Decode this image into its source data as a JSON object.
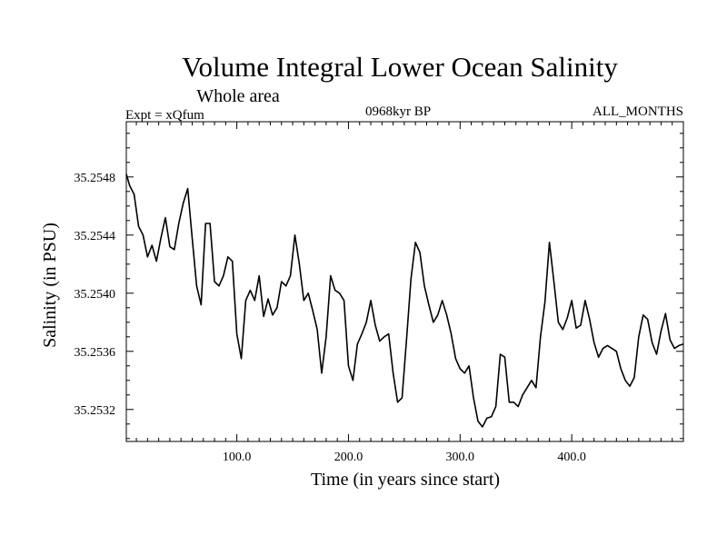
{
  "chart_data": {
    "type": "line",
    "title": "Volume Integral Lower Ocean Salinity",
    "subtitle": "Whole area",
    "annotation_left": "Expt = xQfum",
    "annotation_center": "0968kyr BP",
    "annotation_right": "ALL_MONTHS",
    "xlabel": "Time (in years since start)",
    "ylabel": "Salinity (in PSU)",
    "xlim": [
      1,
      500
    ],
    "ylim": [
      35.25298,
      35.25518
    ],
    "x_ticks": [
      100,
      200,
      300,
      400
    ],
    "x_tick_labels": [
      "100.0",
      "200.0",
      "300.0",
      "400.0"
    ],
    "y_ticks": [
      35.2532,
      35.2536,
      35.254,
      35.2544,
      35.2548
    ],
    "y_tick_labels": [
      "35.2532",
      "35.2536",
      "35.2540",
      "35.2544",
      "35.2548"
    ],
    "series": [
      {
        "name": "Salinity",
        "color": "#000000",
        "x": [
          1,
          4,
          8,
          12,
          16,
          20,
          24,
          28,
          32,
          36,
          40,
          44,
          48,
          52,
          56,
          60,
          64,
          68,
          72,
          76,
          80,
          84,
          88,
          92,
          96,
          100,
          104,
          108,
          112,
          116,
          120,
          124,
          128,
          132,
          136,
          140,
          144,
          148,
          152,
          156,
          160,
          164,
          168,
          172,
          176,
          180,
          184,
          188,
          192,
          196,
          200,
          204,
          208,
          212,
          216,
          220,
          224,
          228,
          232,
          236,
          240,
          244,
          248,
          252,
          256,
          260,
          264,
          268,
          272,
          276,
          280,
          284,
          288,
          292,
          296,
          300,
          304,
          308,
          312,
          316,
          320,
          324,
          328,
          332,
          336,
          340,
          344,
          348,
          352,
          356,
          360,
          364,
          368,
          372,
          376,
          380,
          384,
          388,
          392,
          396,
          400,
          404,
          408,
          412,
          416,
          420,
          424,
          428,
          432,
          436,
          440,
          444,
          448,
          452,
          456,
          460,
          464,
          468,
          472,
          476,
          480,
          484,
          488,
          492,
          496,
          500
        ],
        "values": [
          35.25482,
          35.25474,
          35.25468,
          35.25446,
          35.2544,
          35.25425,
          35.25433,
          35.25422,
          35.25438,
          35.25452,
          35.25432,
          35.2543,
          35.25448,
          35.25462,
          35.25472,
          35.25438,
          35.25405,
          35.25392,
          35.25448,
          35.25448,
          35.25408,
          35.25405,
          35.25412,
          35.25425,
          35.25422,
          35.25372,
          35.25355,
          35.25395,
          35.25402,
          35.25395,
          35.25412,
          35.25384,
          35.25396,
          35.25385,
          35.2539,
          35.25408,
          35.25405,
          35.25412,
          35.2544,
          35.2542,
          35.25395,
          35.254,
          35.25388,
          35.25375,
          35.25345,
          35.2537,
          35.25412,
          35.25402,
          35.254,
          35.25395,
          35.2535,
          35.2534,
          35.25365,
          35.25372,
          35.2538,
          35.25395,
          35.25378,
          35.25367,
          35.2537,
          35.25372,
          35.25345,
          35.25325,
          35.25328,
          35.25368,
          35.2541,
          35.25435,
          35.25428,
          35.25405,
          35.25392,
          35.2538,
          35.25385,
          35.25395,
          35.25385,
          35.25372,
          35.25355,
          35.25348,
          35.25345,
          35.2535,
          35.25328,
          35.25312,
          35.25308,
          35.25314,
          35.25315,
          35.25322,
          35.25358,
          35.25356,
          35.25325,
          35.25325,
          35.25322,
          35.2533,
          35.25335,
          35.2534,
          35.25335,
          35.2537,
          35.25394,
          35.25435,
          35.25408,
          35.2538,
          35.25375,
          35.25383,
          35.25395,
          35.25376,
          35.25378,
          35.25395,
          35.25382,
          35.25366,
          35.25356,
          35.25362,
          35.25364,
          35.25362,
          35.2536,
          35.25348,
          35.2534,
          35.25336,
          35.25342,
          35.2537,
          35.25385,
          35.25382,
          35.25366,
          35.25358,
          35.25374,
          35.25386,
          35.25368,
          35.25362,
          35.25364,
          35.25365
        ]
      }
    ]
  }
}
